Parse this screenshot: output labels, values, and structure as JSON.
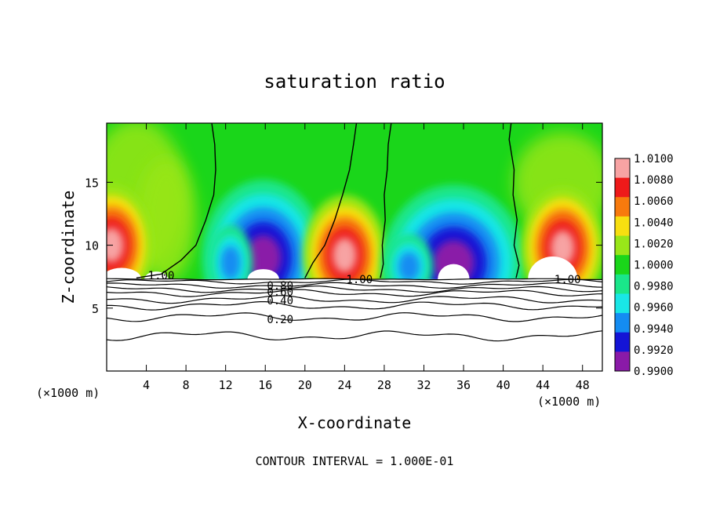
{
  "chart_data": {
    "type": "heatmap",
    "title": "saturation ratio",
    "xlabel": "X-coordinate",
    "ylabel": "Z-coordinate",
    "x_unit": "(×1000 m)",
    "z_unit": "(×1000 m)",
    "xlim": [
      0,
      50
    ],
    "ylim": [
      0,
      19.7
    ],
    "x_ticks": [
      4,
      8,
      12,
      16,
      20,
      24,
      28,
      32,
      36,
      40,
      44,
      48
    ],
    "y_ticks": [
      5,
      10,
      15
    ],
    "footer": "CONTOUR INTERVAL = 1.000E-01",
    "colorbar": {
      "levels": [
        "1.0100",
        "1.0080",
        "1.0060",
        "1.0040",
        "1.0020",
        "1.0000",
        "0.9980",
        "0.9960",
        "0.9940",
        "0.9920",
        "0.9900"
      ],
      "colors": [
        "#f7a3a3",
        "#ee1a1a",
        "#f77a0d",
        "#f7df10",
        "#99e619",
        "#1ad61a",
        "#1ae68a",
        "#19e6e6",
        "#148cf2",
        "#1414d6",
        "#8a1aa8"
      ],
      "range": [
        0.99,
        1.01
      ]
    },
    "contour_labels": [
      {
        "text": "1.00",
        "x": 5.5,
        "z": 7.6
      },
      {
        "text": "1.00",
        "x": 25.5,
        "z": 7.3
      },
      {
        "text": "1.00",
        "x": 46.5,
        "z": 7.3
      },
      {
        "text": "0.80",
        "x": 17.5,
        "z": 6.8
      },
      {
        "text": "0.60",
        "x": 17.5,
        "z": 6.3
      },
      {
        "text": "0.40",
        "x": 17.5,
        "z": 5.6
      },
      {
        "text": "0.20",
        "x": 17.5,
        "z": 4.1
      }
    ],
    "contour_lines": [
      0.8,
      0.7,
      0.6,
      0.5,
      0.4,
      0.3,
      0.2,
      0.1
    ],
    "cloud_base_z": 7.3,
    "features": [
      {
        "kind": "supersaturated",
        "x": 0.5,
        "z": 10.0
      },
      {
        "kind": "subsaturated",
        "x": 15.8,
        "z": 9.0
      },
      {
        "kind": "supersaturated",
        "x": 24.0,
        "z": 9.2
      },
      {
        "kind": "subsaturated",
        "x": 35.0,
        "z": 8.6
      },
      {
        "kind": "supersaturated",
        "x": 46.0,
        "z": 9.8
      }
    ]
  }
}
